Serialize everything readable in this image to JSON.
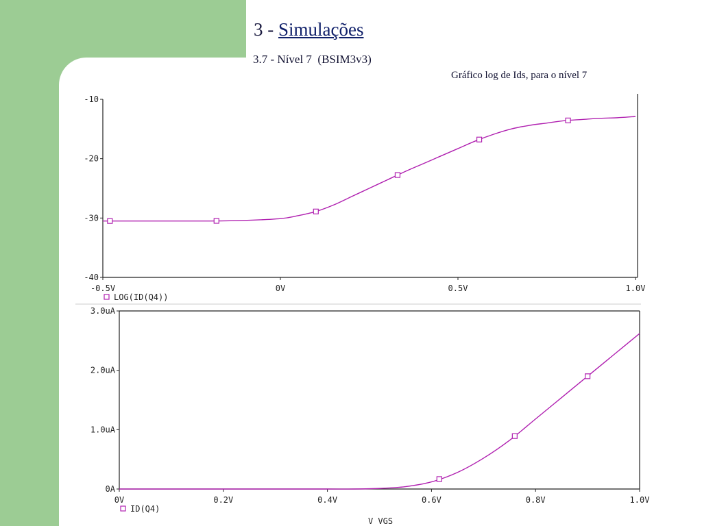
{
  "slide": {
    "title_prefix": "3 - ",
    "title_link": "Simulações",
    "subtitle": "3.7 - Nível 7  (BSIM3v3)",
    "caption": "Gráfico log de Ids, para o nível 7"
  },
  "colors": {
    "background_band": "#9ccc94",
    "trace": "#b020b0",
    "marker": "#b020b0",
    "axis": "#222222"
  },
  "chart_data": [
    {
      "type": "line",
      "title": "",
      "xlabel": "",
      "ylabel": "",
      "xlim": [
        -0.5,
        1.0
      ],
      "ylim": [
        -40,
        -10
      ],
      "x_ticks": [
        -0.5,
        0,
        0.5,
        1.0
      ],
      "x_tick_labels": [
        "-0.5V",
        "0V",
        "0.5V",
        "1.0V"
      ],
      "y_ticks": [
        -40,
        -30,
        -20,
        -10
      ],
      "y_tick_labels": [
        "-40",
        "-30",
        "-20",
        "-10"
      ],
      "grid": false,
      "legend": "bottom-left",
      "series": [
        {
          "name": "LOG(ID(Q4))",
          "marker": "square",
          "x": [
            -0.5,
            -0.4,
            -0.3,
            -0.2,
            -0.1,
            0.0,
            0.05,
            0.1,
            0.15,
            0.2,
            0.25,
            0.3,
            0.35,
            0.4,
            0.45,
            0.5,
            0.55,
            0.6,
            0.65,
            0.7,
            0.75,
            0.8,
            0.85,
            0.9,
            0.95,
            1.0
          ],
          "y": [
            -30.5,
            -30.5,
            -30.5,
            -30.5,
            -30.4,
            -30.1,
            -29.6,
            -28.9,
            -27.8,
            -26.4,
            -25.0,
            -23.6,
            -22.2,
            -20.9,
            -19.6,
            -18.3,
            -17.0,
            -15.9,
            -15.0,
            -14.4,
            -14.0,
            -13.6,
            -13.4,
            -13.2,
            -13.1,
            -12.9
          ],
          "marker_x": [
            -0.48,
            -0.18,
            0.1,
            0.33,
            0.56,
            0.81
          ]
        }
      ]
    },
    {
      "type": "line",
      "title": "",
      "xlabel": "V_VGS",
      "ylabel": "",
      "xlim": [
        0.0,
        1.0
      ],
      "ylim": [
        0.0,
        3.0
      ],
      "x_ticks": [
        0.0,
        0.2,
        0.4,
        0.6,
        0.8,
        1.0
      ],
      "x_tick_labels": [
        "0V",
        "0.2V",
        "0.4V",
        "0.6V",
        "0.8V",
        "1.0V"
      ],
      "y_ticks": [
        0.0,
        1.0,
        2.0,
        3.0
      ],
      "y_tick_labels": [
        "0A",
        "1.0uA",
        "2.0uA",
        "3.0uA"
      ],
      "grid": false,
      "legend": "bottom-left",
      "series": [
        {
          "name": "ID(Q4)",
          "marker": "square",
          "x": [
            0.0,
            0.1,
            0.2,
            0.3,
            0.4,
            0.45,
            0.5,
            0.55,
            0.6,
            0.65,
            0.7,
            0.75,
            0.8,
            0.85,
            0.9,
            0.95,
            1.0
          ],
          "y": [
            0.0,
            0.0,
            0.0,
            0.0,
            0.0,
            0.0,
            0.01,
            0.04,
            0.12,
            0.28,
            0.52,
            0.82,
            1.18,
            1.54,
            1.9,
            2.26,
            2.62
          ],
          "marker_x": [
            0.615,
            0.76,
            0.9
          ]
        }
      ]
    }
  ]
}
